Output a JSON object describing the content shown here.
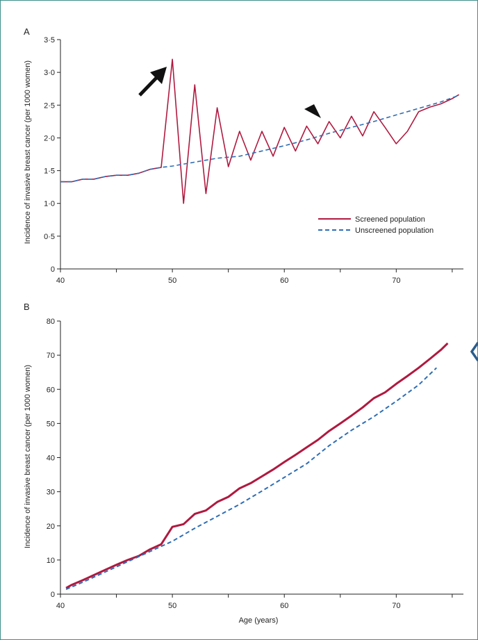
{
  "colors": {
    "screened": "#b0193f",
    "unscreened": "#2e6db4",
    "axis": "#222222",
    "frame": "#3d8f8a",
    "nav_chevron": "#2b5d8c"
  },
  "nav": {
    "icon": "chevron-left-icon"
  },
  "annotations": {
    "arrow_icon": "arrow-icon",
    "arrowhead_icon": "arrowhead-icon"
  },
  "chart_data": [
    {
      "type": "line",
      "panel_label": "A",
      "xlabel": "",
      "ylabel": "Incidence of invasive breast cancer (per 1000 women)",
      "xlim": [
        40,
        76
      ],
      "ylim": [
        0,
        3.5
      ],
      "xticks": [
        40,
        50,
        60,
        70
      ],
      "xtick_labels": [
        "40",
        "50",
        "60",
        "70"
      ],
      "yticks": [
        0,
        0.5,
        1.0,
        1.5,
        2.0,
        2.5,
        3.0,
        3.5
      ],
      "ytick_labels": [
        "0",
        "0·5",
        "1·0",
        "1·5",
        "2·0",
        "2·5",
        "3·0",
        "3·5"
      ],
      "legend": {
        "position": "bottom-right",
        "entries": [
          "Screened population",
          "Unscreened population"
        ]
      },
      "series": [
        {
          "name": "Screened population",
          "style": "solid",
          "x": [
            40,
            41,
            42,
            43,
            44,
            45,
            46,
            47,
            48,
            49,
            50,
            51,
            52,
            53,
            54,
            55,
            56,
            57,
            58,
            59,
            60,
            61,
            62,
            63,
            64,
            65,
            66,
            67,
            68,
            69,
            70,
            71,
            72,
            73,
            74,
            75,
            75.6
          ],
          "y": [
            1.33,
            1.33,
            1.37,
            1.37,
            1.41,
            1.43,
            1.43,
            1.46,
            1.52,
            1.55,
            3.2,
            1.0,
            2.81,
            1.15,
            2.46,
            1.56,
            2.1,
            1.66,
            2.1,
            1.72,
            2.16,
            1.8,
            2.18,
            1.91,
            2.25,
            2.0,
            2.33,
            2.03,
            2.4,
            2.16,
            1.91,
            2.1,
            2.4,
            2.47,
            2.52,
            2.6,
            2.66
          ]
        },
        {
          "name": "Unscreened population",
          "style": "dashed",
          "x": [
            40,
            41,
            42,
            43,
            44,
            45,
            46,
            47,
            48,
            49,
            50,
            52,
            54,
            56,
            58,
            60,
            62,
            64,
            66,
            68,
            70,
            72,
            74,
            75.6
          ],
          "y": [
            1.33,
            1.33,
            1.37,
            1.37,
            1.41,
            1.43,
            1.43,
            1.46,
            1.52,
            1.55,
            1.57,
            1.63,
            1.69,
            1.72,
            1.8,
            1.88,
            1.97,
            2.07,
            2.16,
            2.25,
            2.35,
            2.45,
            2.55,
            2.65
          ]
        }
      ]
    },
    {
      "type": "line",
      "panel_label": "B",
      "xlabel": "Age (years)",
      "ylabel": "Incidence of invasive breast cancer (per 1000 women)",
      "xlim": [
        40,
        76
      ],
      "ylim": [
        0,
        80
      ],
      "xticks": [
        40,
        50,
        60,
        70
      ],
      "xtick_labels": [
        "40",
        "50",
        "60",
        "70"
      ],
      "yticks": [
        0,
        10,
        20,
        30,
        40,
        50,
        60,
        70,
        80
      ],
      "ytick_labels": [
        "0",
        "10",
        "20",
        "30",
        "40",
        "50",
        "60",
        "70",
        "80"
      ],
      "series": [
        {
          "name": "Screened population",
          "style": "solid",
          "x": [
            40.5,
            41,
            42,
            43,
            44,
            45,
            46,
            47,
            48,
            49,
            50,
            51,
            52,
            53,
            54,
            55,
            56,
            57,
            58,
            59,
            60,
            61,
            62,
            63,
            64,
            65,
            66,
            67,
            68,
            69,
            70,
            71,
            72,
            73,
            74,
            74.6
          ],
          "y": [
            1.8,
            2.7,
            4.1,
            5.6,
            7.1,
            8.6,
            10.0,
            11.2,
            13.1,
            14.6,
            19.7,
            20.5,
            23.5,
            24.5,
            27.0,
            28.5,
            31.0,
            32.5,
            34.5,
            36.5,
            38.7,
            40.8,
            43.0,
            45.2,
            47.8,
            50.0,
            52.3,
            54.7,
            57.4,
            59.1,
            61.6,
            63.9,
            66.3,
            68.9,
            71.6,
            73.5
          ]
        },
        {
          "name": "Unscreened population",
          "style": "dashed",
          "x": [
            40.5,
            42,
            44,
            46,
            48,
            50,
            52,
            54,
            56,
            58,
            60,
            62,
            64,
            66,
            68,
            70,
            72,
            73.6
          ],
          "y": [
            1.4,
            3.5,
            6.5,
            9.5,
            12.5,
            15.5,
            19.3,
            22.8,
            26.3,
            30.2,
            34.2,
            38.2,
            43.5,
            48.0,
            52.0,
            56.5,
            61.3,
            66.3
          ]
        }
      ]
    }
  ]
}
